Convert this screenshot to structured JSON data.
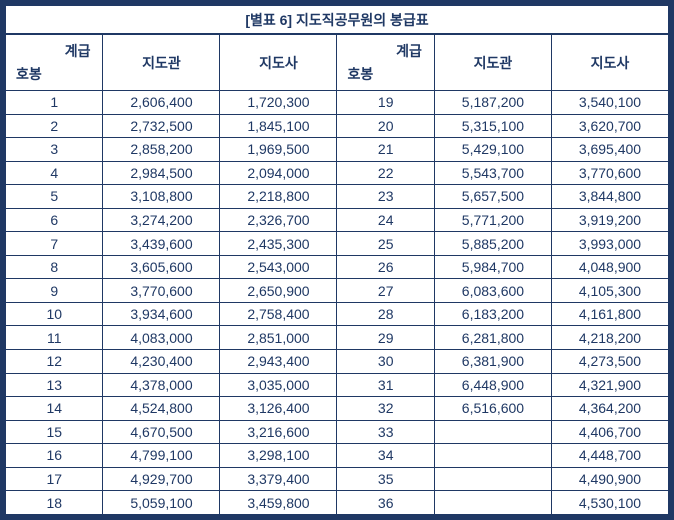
{
  "title": "[별표 6] 지도직공무원의 봉급표",
  "header": {
    "rank_label": "계급",
    "step_label": "호봉",
    "jidogwan_label": "지도관",
    "jidosa_label": "지도사"
  },
  "accent_color": "#1F3864",
  "table": {
    "rows": [
      [
        "1",
        "2,606,400",
        "1,720,300",
        "19",
        "5,187,200",
        "3,540,100"
      ],
      [
        "2",
        "2,732,500",
        "1,845,100",
        "20",
        "5,315,100",
        "3,620,700"
      ],
      [
        "3",
        "2,858,200",
        "1,969,500",
        "21",
        "5,429,100",
        "3,695,400"
      ],
      [
        "4",
        "2,984,500",
        "2,094,000",
        "22",
        "5,543,700",
        "3,770,600"
      ],
      [
        "5",
        "3,108,800",
        "2,218,800",
        "23",
        "5,657,500",
        "3,844,800"
      ],
      [
        "6",
        "3,274,200",
        "2,326,700",
        "24",
        "5,771,200",
        "3,919,200"
      ],
      [
        "7",
        "3,439,600",
        "2,435,300",
        "25",
        "5,885,200",
        "3,993,000"
      ],
      [
        "8",
        "3,605,600",
        "2,543,000",
        "26",
        "5,984,700",
        "4,048,900"
      ],
      [
        "9",
        "3,770,600",
        "2,650,900",
        "27",
        "6,083,600",
        "4,105,300"
      ],
      [
        "10",
        "3,934,600",
        "2,758,400",
        "28",
        "6,183,200",
        "4,161,800"
      ],
      [
        "11",
        "4,083,000",
        "2,851,000",
        "29",
        "6,281,800",
        "4,218,200"
      ],
      [
        "12",
        "4,230,400",
        "2,943,400",
        "30",
        "6,381,900",
        "4,273,500"
      ],
      [
        "13",
        "4,378,000",
        "3,035,000",
        "31",
        "6,448,900",
        "4,321,900"
      ],
      [
        "14",
        "4,524,800",
        "3,126,400",
        "32",
        "6,516,600",
        "4,364,200"
      ],
      [
        "15",
        "4,670,500",
        "3,216,600",
        "33",
        "",
        "4,406,700"
      ],
      [
        "16",
        "4,799,100",
        "3,298,100",
        "34",
        "",
        "4,448,700"
      ],
      [
        "17",
        "4,929,700",
        "3,379,400",
        "35",
        "",
        "4,490,900"
      ],
      [
        "18",
        "5,059,100",
        "3,459,800",
        "36",
        "",
        "4,530,100"
      ]
    ]
  }
}
